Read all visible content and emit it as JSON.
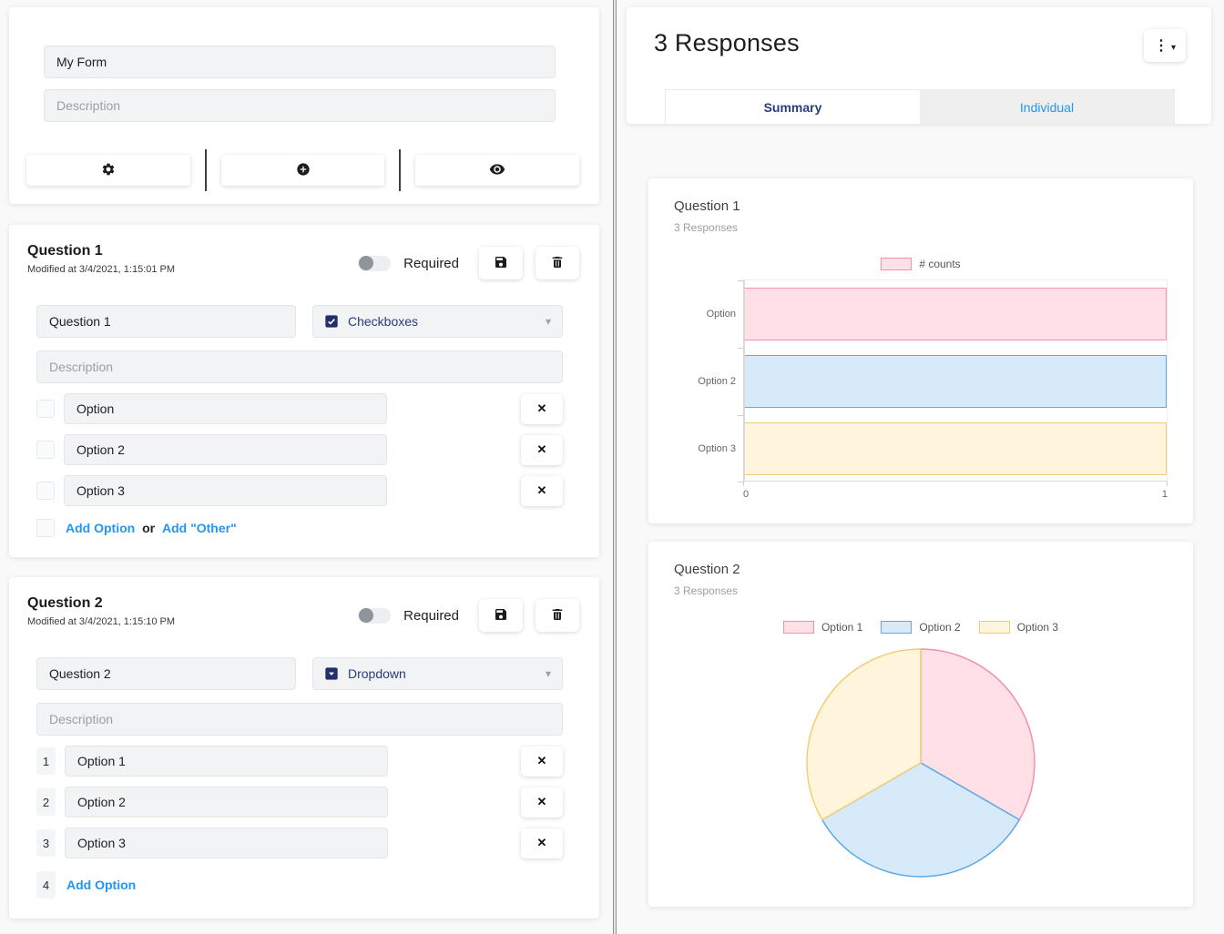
{
  "colors": {
    "accent_blue": "#2196f3",
    "navy": "#2c3a7e",
    "pink_fill": "#ffe0e6",
    "pink_border": "#f48fb0",
    "blue_fill": "#d7eaf9",
    "blue_border": "#5ca8e8",
    "yellow_fill": "#fff5dc",
    "yellow_border": "#f2ce76"
  },
  "builder": {
    "form": {
      "title_value": "My Form",
      "description_placeholder": "Description"
    },
    "toolbar": {
      "settings_icon": "gear-icon",
      "add_icon": "plus-circle-icon",
      "preview_icon": "eye-icon"
    },
    "questions": [
      {
        "title": "Question 1",
        "modified": "Modified at 3/4/2021, 1:15:01 PM",
        "required_label": "Required",
        "required_on": false,
        "name_value": "Question 1",
        "type_label": "Checkboxes",
        "type_icon": "checkbox-icon",
        "description_placeholder": "Description",
        "options": [
          "Option",
          "Option 2",
          "Option 3"
        ],
        "add_option_label": "Add Option",
        "or_label": "or",
        "add_other_label": "Add \"Other\""
      },
      {
        "title": "Question 2",
        "modified": "Modified at 3/4/2021, 1:15:10 PM",
        "required_label": "Required",
        "required_on": false,
        "name_value": "Question 2",
        "type_label": "Dropdown",
        "type_icon": "dropdown-icon",
        "description_placeholder": "Description",
        "option_numbers": [
          "1",
          "2",
          "3"
        ],
        "options": [
          "Option 1",
          "Option 2",
          "Option 3"
        ],
        "add_option_number": "4",
        "add_option_label": "Add Option"
      }
    ]
  },
  "responses": {
    "title": "3 Responses",
    "menu_icon": "kebab-menu-icon",
    "tabs": [
      {
        "label": "Summary",
        "active": true
      },
      {
        "label": "Individual",
        "active": false
      }
    ]
  },
  "chart_data": [
    {
      "type": "bar",
      "orientation": "horizontal",
      "title": "Question 1",
      "subtitle": "3 Responses",
      "legend": [
        "# counts"
      ],
      "legend_position": "top",
      "categories": [
        "Option",
        "Option 2",
        "Option 3"
      ],
      "values": [
        1,
        1,
        1
      ],
      "xlim": [
        0,
        1
      ],
      "x_ticks": [
        "0",
        "1"
      ],
      "grid": false,
      "bar_fills": [
        "#ffe0e6",
        "#d7eaf9",
        "#fff5dc"
      ],
      "bar_borders": [
        "#f48fb0",
        "#5ca8e8",
        "#f2ce76"
      ]
    },
    {
      "type": "pie",
      "title": "Question 2",
      "subtitle": "3 Responses",
      "legend_position": "top",
      "labels": [
        "Option 1",
        "Option 2",
        "Option 3"
      ],
      "values": [
        1,
        1,
        1
      ],
      "slice_fills": [
        "#ffe0e6",
        "#d7eaf9",
        "#fff5dc"
      ],
      "slice_borders": [
        "#f48fb0",
        "#5ca8e8",
        "#f2ce76"
      ],
      "start_angle_deg": 0,
      "direction": "clockwise"
    }
  ]
}
